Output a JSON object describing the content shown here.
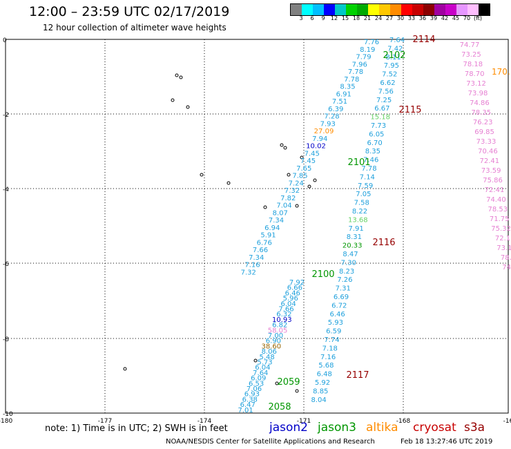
{
  "header": {
    "title": "12:00 – 23:59 UTC 02/17/2019",
    "subtitle": "12 hour collection of altimeter wave heights"
  },
  "colorbar": {
    "colors": [
      "#808080",
      "#00ffff",
      "#00bfff",
      "#0000ff",
      "#00c8c8",
      "#00d200",
      "#00aa00",
      "#ffff00",
      "#ffc800",
      "#ff8c00",
      "#ff0000",
      "#c80000",
      "#8c0000",
      "#a000a0",
      "#c800c8",
      "#e696ff",
      "#ffbeff",
      "#000000"
    ],
    "labels": [
      "3",
      "6",
      "9",
      "12",
      "15",
      "18",
      "21",
      "24",
      "27",
      "30",
      "33",
      "36",
      "39",
      "42",
      "45",
      "70",
      "(ft)"
    ]
  },
  "axes": {
    "lon_ticks": [
      "-180",
      "-177",
      "-174",
      "-171",
      "-168",
      "-16"
    ],
    "lat_ticks": [
      "0",
      "-2",
      "-4",
      "-6",
      "-8",
      "-10"
    ]
  },
  "colors": {
    "cyan": "#1ea0dc",
    "green": "#009600",
    "lightgreen": "#64d264",
    "orange": "#ff8c00",
    "pink": "#e67fd2",
    "dkred": "#960000",
    "blue": "#0000c8",
    "olive": "#966400"
  },
  "track_labels": [
    {
      "text": "2114",
      "color": "dkred"
    },
    {
      "text": "2102",
      "color": "green"
    },
    {
      "text": "2115",
      "color": "dkred"
    },
    {
      "text": "2101",
      "color": "green"
    },
    {
      "text": "2116",
      "color": "dkred"
    },
    {
      "text": "2100",
      "color": "green"
    },
    {
      "text": "2117",
      "color": "dkred"
    },
    {
      "text": "2059",
      "color": "green"
    },
    {
      "text": "2058",
      "color": "green"
    }
  ],
  "track_a": [
    "7.76",
    "8.19",
    "7.79",
    "7.96",
    "7.78",
    "7.78",
    "8.35",
    "6.91",
    "7.51",
    "6.39",
    "7.28",
    "7.93",
    "27.09",
    "7.94",
    "10.02",
    "7.45",
    "7.45",
    "7.65",
    "7.85",
    "7.24",
    "7.32",
    "7.82",
    "7.04",
    "8.07",
    "7.34",
    "6.94",
    "5.91",
    "6.76",
    "7.66",
    "7.34",
    "7.16",
    "7.32"
  ],
  "track_b": [
    "7.64",
    "7.42",
    "8.11",
    "7.95",
    "7.52",
    "6.62",
    "7.56",
    "7.25",
    "6.67",
    "15.18",
    "7.73",
    "6.05",
    "6.70",
    "8.35",
    "7.46",
    "7.78",
    "7.14",
    "7.59",
    "7.05",
    "7.58",
    "8.22",
    "13.68",
    "7.91",
    "8.31",
    "20.33",
    "8.47",
    "7.30",
    "8.23",
    "7.26",
    "7.31",
    "6.69",
    "6.72",
    "6.46",
    "5.93",
    "6.59",
    "7.74",
    "7.18",
    "7.16",
    "5.68",
    "6.48",
    "5.92",
    "8.85",
    "8.04"
  ],
  "track_c": [
    "74.77",
    "73.25",
    "78.18",
    "78.70",
    "73.12",
    "73.98",
    "74.86",
    "78.35",
    "76.23",
    "69.85",
    "73.33",
    "70.46",
    "72.41",
    "73.59",
    "75.86",
    "72.41",
    "74.40",
    "78.53",
    "71.75",
    "75.32",
    "72.1",
    "73.1",
    "78.",
    "74."
  ],
  "track_c_orange": "170.",
  "lower_a": [
    "7.92",
    "6.66",
    "6.46",
    "5.96",
    "6.04",
    "7.66",
    "6.32",
    "10.93",
    "6.82",
    "58.05",
    "7.00",
    "6.90",
    "38.60",
    "8.06",
    "5.48",
    "5.73",
    "6.04",
    "7.64",
    "6.09",
    "6.53",
    "7.06",
    "6.93",
    "6.38",
    "6.47",
    "7.01"
  ],
  "note": "note:  1) Time is in UTC;  2) SWH is in feet",
  "legend": [
    {
      "text": "jason2",
      "color": "#0000c8"
    },
    {
      "text": "jason3",
      "color": "#009600"
    },
    {
      "text": "altika",
      "color": "#ff8c00"
    },
    {
      "text": "cryosat",
      "color": "#c80000"
    },
    {
      "text": "s3a",
      "color": "#960000"
    }
  ],
  "footer": "NOAA/NESDIS Center for Satellite Applications and Research",
  "footer_time": "Feb 18 13:27:46 UTC 2019"
}
